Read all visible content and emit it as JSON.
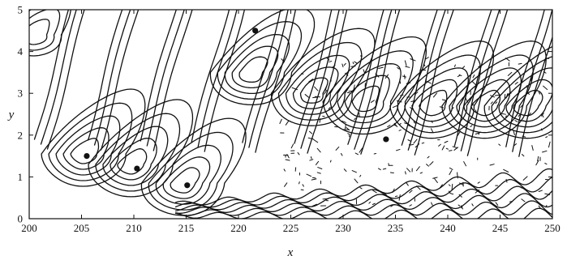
{
  "chart_data": {
    "type": "contour",
    "title": "",
    "xlabel": "x",
    "ylabel": "y",
    "xlim": [
      200,
      250
    ],
    "ylim": [
      0,
      5
    ],
    "xticks": [
      "200",
      "205",
      "210",
      "215",
      "220",
      "225",
      "230",
      "235",
      "240",
      "245",
      "250"
    ],
    "yticks": [
      "0",
      "1",
      "2",
      "3",
      "4",
      "5"
    ],
    "grid": false,
    "line_color": "#111111",
    "vortex_centres": [
      {
        "x": 205.5,
        "y": 1.5
      },
      {
        "x": 210.3,
        "y": 1.2
      },
      {
        "x": 215.1,
        "y": 0.8
      },
      {
        "x": 221.6,
        "y": 4.5
      },
      {
        "x": 234.1,
        "y": 1.9
      }
    ],
    "rollers": [
      {
        "x": 200.5,
        "y": 4.4
      },
      {
        "x": 205.2,
        "y": 1.55
      },
      {
        "x": 209.7,
        "y": 1.3
      },
      {
        "x": 214.7,
        "y": 0.85
      },
      {
        "x": 221.2,
        "y": 3.5
      },
      {
        "x": 227.0,
        "y": 3.0
      },
      {
        "x": 232.0,
        "y": 2.8
      },
      {
        "x": 238.5,
        "y": 2.7
      },
      {
        "x": 243.5,
        "y": 2.7
      },
      {
        "x": 247.5,
        "y": 2.7
      }
    ]
  }
}
